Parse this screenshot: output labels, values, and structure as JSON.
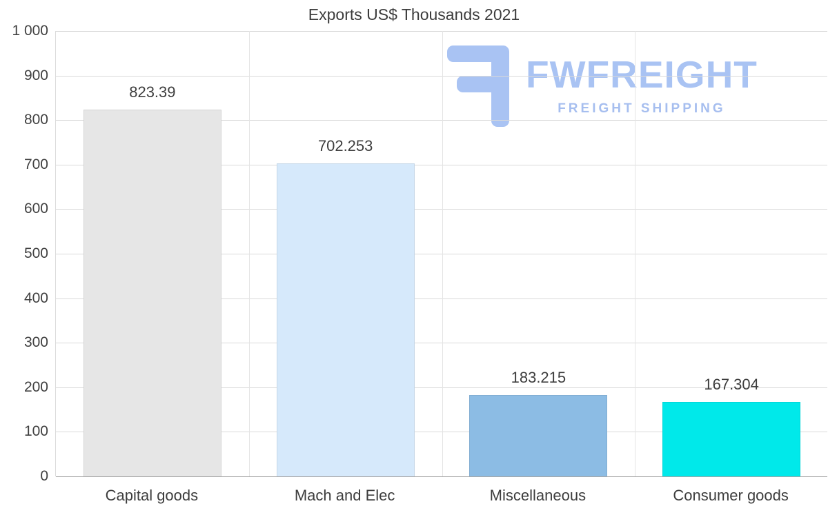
{
  "title": "Exports US$ Thousands 2021",
  "watermark": {
    "brand": "FWFREIGHT",
    "tagline": "FREIGHT SHIPPING",
    "color": "#a9c3f3"
  },
  "chart_data": {
    "type": "bar",
    "title": "Exports US$ Thousands 2021",
    "categories": [
      "Capital goods",
      "Mach and Elec",
      "Miscellaneous",
      "Consumer goods"
    ],
    "values": [
      823.39,
      702.253,
      183.215,
      167.304
    ],
    "value_labels": [
      "823.39",
      "702.253",
      "183.215",
      "167.304"
    ],
    "bar_colors": [
      "#e6e6e6",
      "#d6e9fb",
      "#8cbce4",
      "#00e9ea"
    ],
    "xlabel": "",
    "ylabel": "",
    "ylim": [
      0,
      1000
    ],
    "ytick_step": 100,
    "ytick_labels": [
      "1 000",
      "900",
      "800",
      "700",
      "600",
      "500",
      "400",
      "300",
      "200",
      "100",
      "0"
    ],
    "grid": true,
    "legend": "none"
  }
}
